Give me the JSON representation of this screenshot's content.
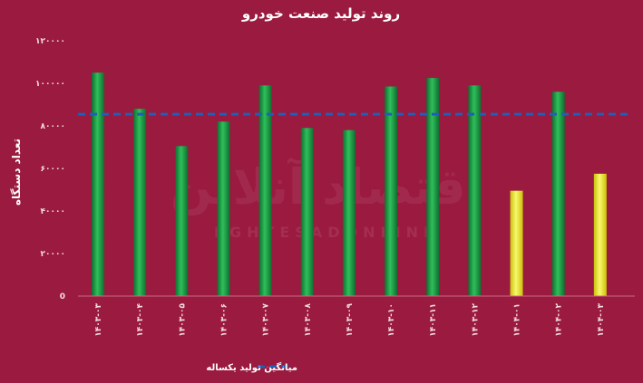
{
  "chart_data": {
    "type": "bar",
    "title": "روند تولید صنعت خودرو",
    "ylabel": "تعداد دستگاه",
    "xlabel": "",
    "categories": [
      "۱۴۰۳-۰۳",
      "۱۴۰۳-۰۴",
      "۱۴۰۳-۰۵",
      "۱۴۰۳-۰۶",
      "۱۴۰۳-۰۷",
      "۱۴۰۳-۰۸",
      "۱۴۰۳-۰۹",
      "۱۴۰۳-۱۰",
      "۱۴۰۳-۱۱",
      "۱۴۰۳-۱۲",
      "۱۴۰۴-۰۱",
      "۱۴۰۴-۰۲",
      "۱۴۰۴-۰۳"
    ],
    "values": [
      105000,
      88000,
      70500,
      82000,
      99000,
      79000,
      78000,
      98500,
      102500,
      99000,
      49500,
      96000,
      57500
    ],
    "bar_colors": [
      "#1e9e4a",
      "#1e9e4a",
      "#1e9e4a",
      "#1e9e4a",
      "#1e9e4a",
      "#1e9e4a",
      "#1e9e4a",
      "#1e9e4a",
      "#1e9e4a",
      "#1e9e4a",
      "#f0ee2a",
      "#1e9e4a",
      "#f0ee2a"
    ],
    "ylim": [
      0,
      120000
    ],
    "yticks": [
      0,
      20000,
      40000,
      60000,
      80000,
      100000,
      120000
    ],
    "ytick_labels": [
      "0",
      "۲۰۰۰۰",
      "۴۰۰۰۰",
      "۶۰۰۰۰",
      "۸۰۰۰۰",
      "۱۰۰۰۰۰",
      "۱۲۰۰۰۰"
    ],
    "average": {
      "name": "میانگین تولید یکساله",
      "value": 85500,
      "color": "#1f5fb8"
    },
    "grid": false,
    "legend_position": "bottom-center"
  },
  "watermark": {
    "text_fa": "اقتصاد آنلاین",
    "text_en": "EGHTESADONLINE"
  },
  "colors": {
    "background": "#9b1a3f",
    "axis": "#c96a86"
  }
}
